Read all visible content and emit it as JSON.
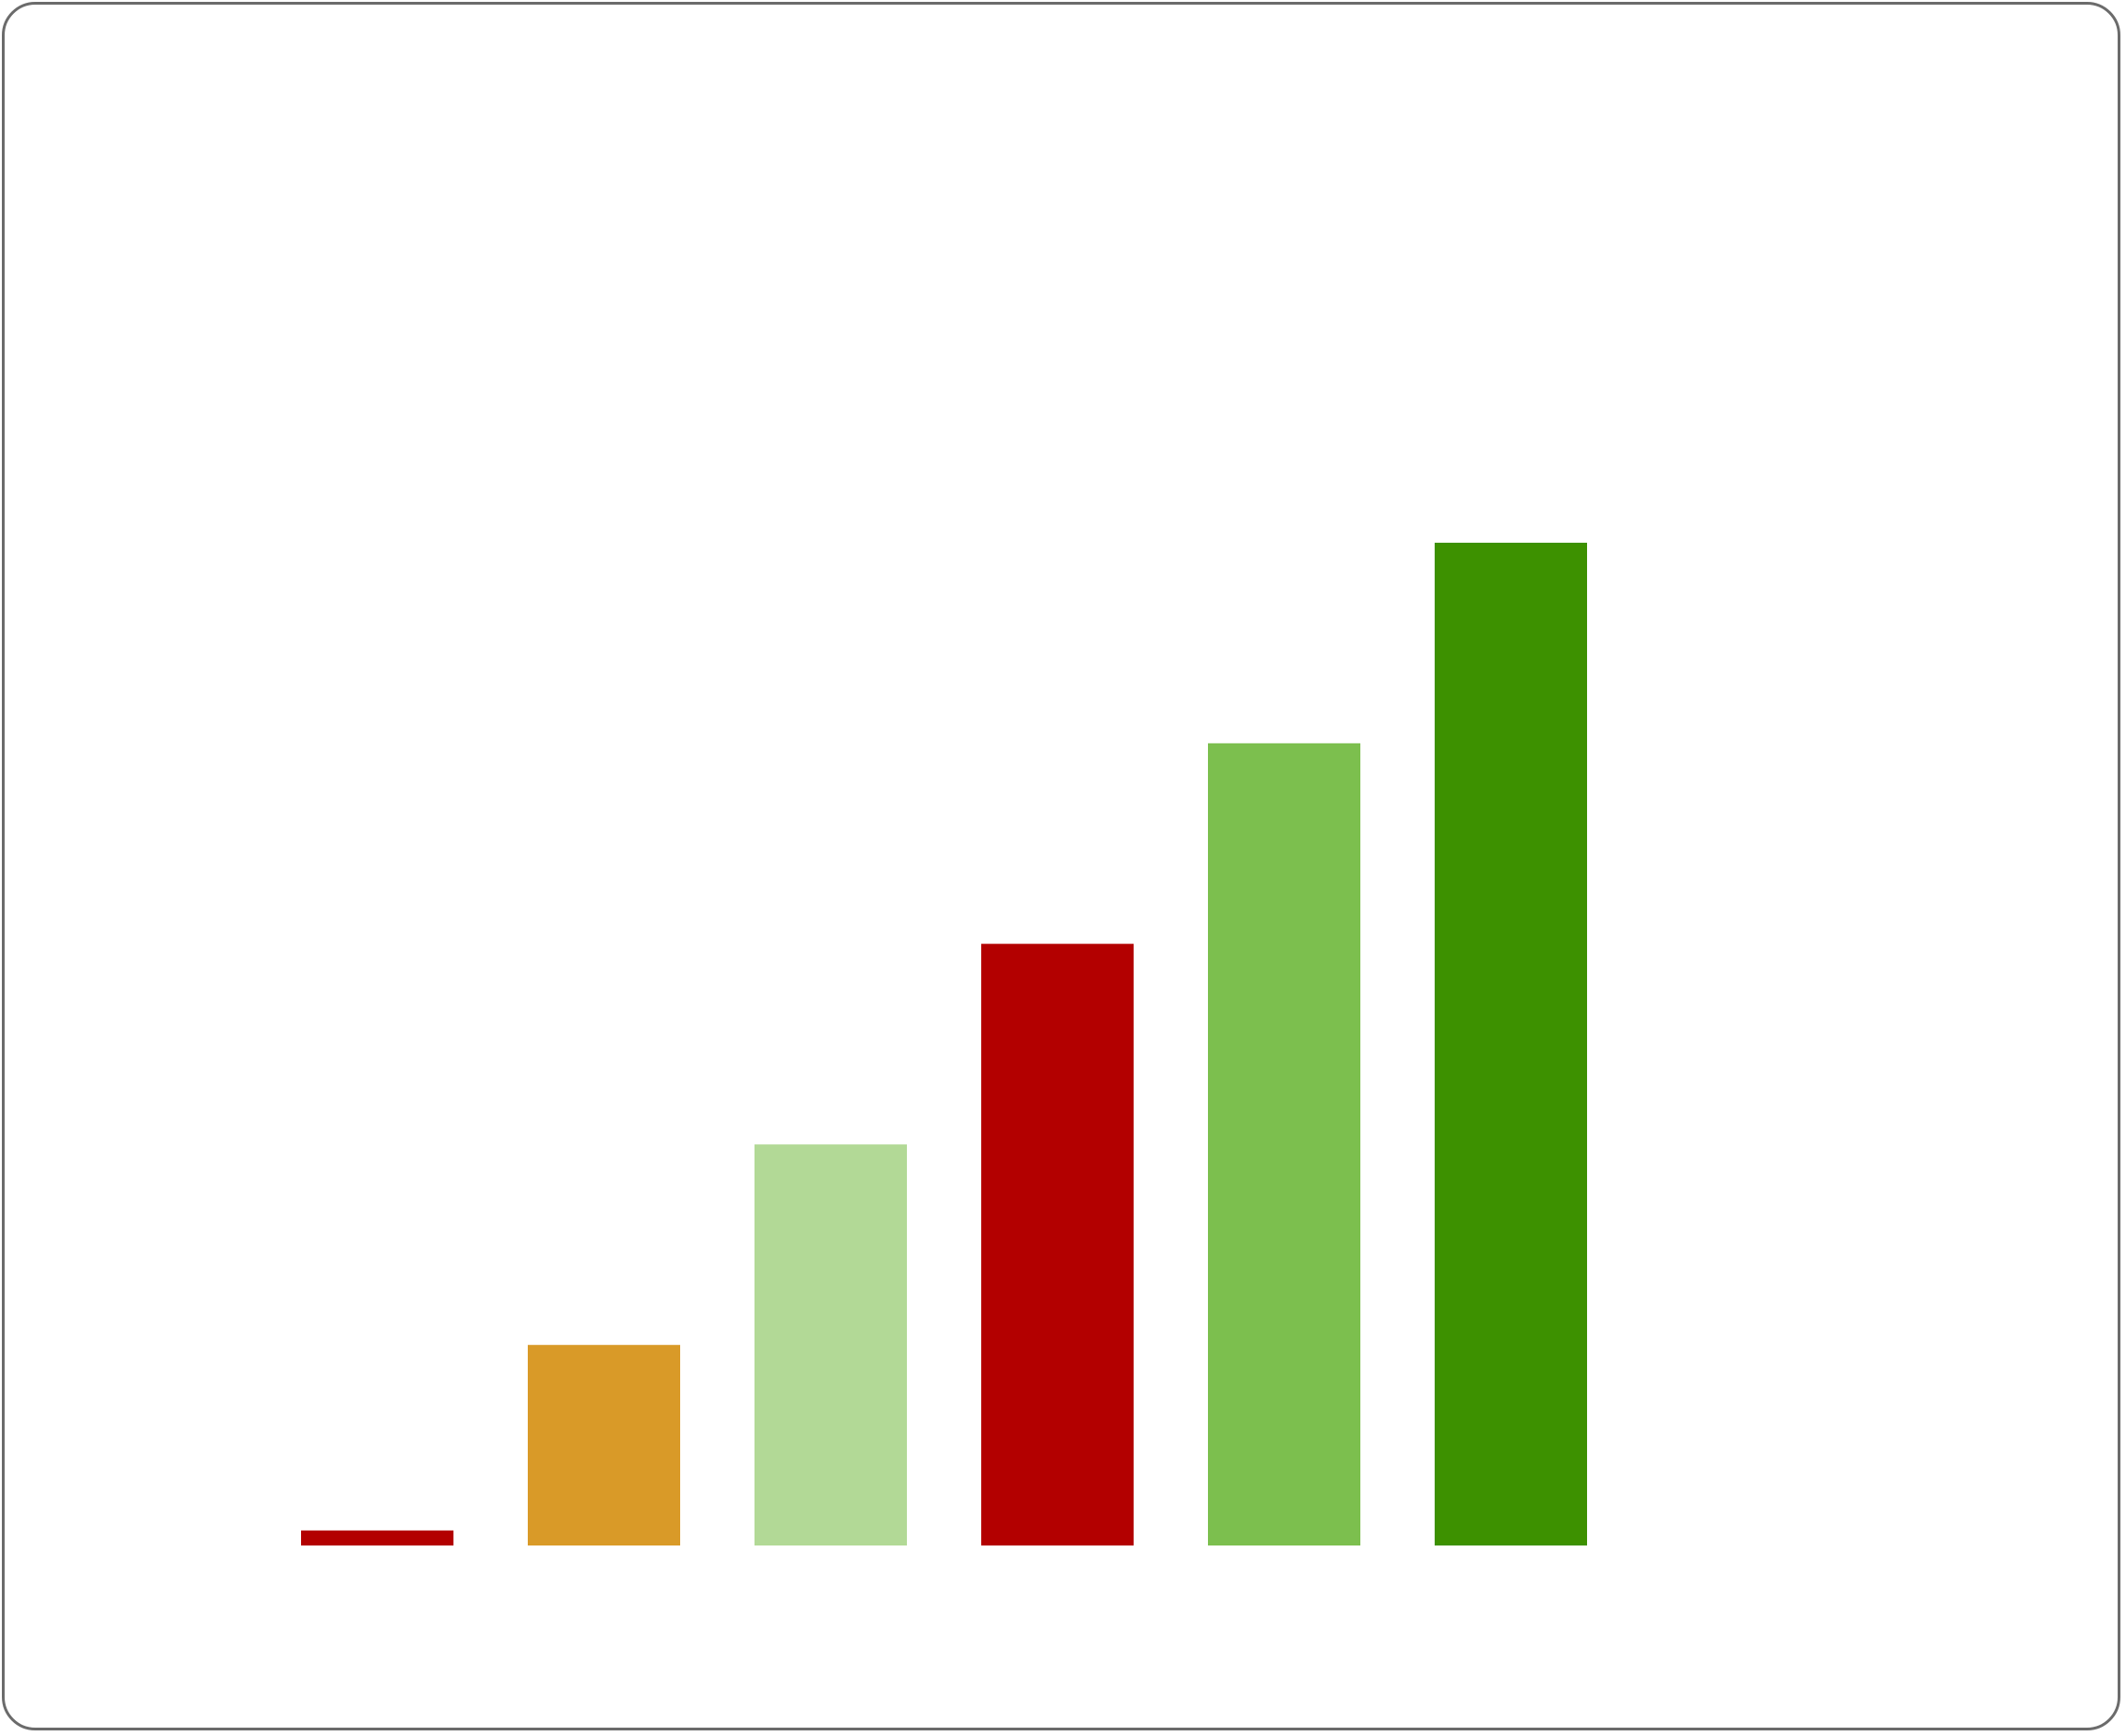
{
  "chart_data": {
    "type": "bar",
    "title": "",
    "xlabel": "",
    "ylabel": "",
    "categories": [
      "",
      "",
      "",
      "",
      "",
      ""
    ],
    "values": [
      0.15,
      2.0,
      4.0,
      6.0,
      8.0,
      10.0
    ],
    "ylim": [
      0,
      10
    ],
    "colors": [
      "#b30000",
      "#d99a28",
      "#b2d996",
      "#b30000",
      "#7cbf4e",
      "#3d9100"
    ],
    "grid": false,
    "legend": "none"
  }
}
